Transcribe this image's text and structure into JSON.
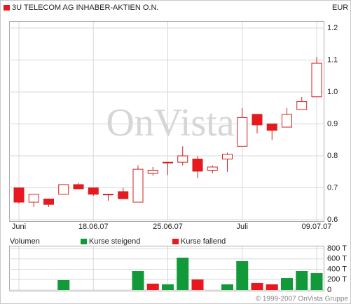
{
  "chart_data": [
    {
      "type": "candlestick",
      "title": "3U TELECOM AG INHABER-AKTIEN O.N.",
      "unit": "EUR",
      "watermark": "OnVista.",
      "categories": [
        "Juni",
        null,
        null,
        null,
        null,
        "18.06.07",
        null,
        null,
        null,
        null,
        "25.06.07",
        null,
        null,
        null,
        null,
        "Juli",
        null,
        null,
        null,
        null,
        "09.07.07"
      ],
      "open": [
        0.7,
        0.655,
        0.665,
        0.68,
        0.71,
        0.7,
        0.68,
        0.688,
        0.655,
        0.745,
        0.778,
        0.78,
        0.79,
        0.755,
        0.79,
        0.83,
        0.93,
        0.9,
        0.89,
        0.945,
        0.985
      ],
      "high": [
        0.7,
        0.68,
        0.665,
        0.71,
        0.715,
        0.7,
        0.68,
        0.7,
        0.77,
        0.765,
        0.78,
        0.83,
        0.8,
        0.77,
        0.81,
        0.95,
        0.93,
        0.9,
        0.95,
        0.985,
        1.11
      ],
      "low": [
        0.65,
        0.64,
        0.64,
        0.68,
        0.695,
        0.675,
        0.66,
        0.666,
        0.655,
        0.738,
        0.74,
        0.77,
        0.73,
        0.745,
        0.75,
        0.83,
        0.87,
        0.85,
        0.89,
        0.945,
        0.985
      ],
      "close": [
        0.655,
        0.68,
        0.648,
        0.71,
        0.697,
        0.68,
        0.678,
        0.666,
        0.758,
        0.755,
        0.78,
        0.8,
        0.752,
        0.765,
        0.805,
        0.92,
        0.897,
        0.88,
        0.93,
        0.97,
        1.09
      ],
      "up_color": "#ffffff",
      "down_color": "#e8191e",
      "outline_color": "#d42020",
      "ylim": [
        0.6,
        1.2
      ],
      "yticks": [
        0.6,
        0.7,
        0.8,
        0.9,
        {
          "value": 1,
          "label": "1.0"
        },
        1.1,
        1.2
      ],
      "grid": true
    },
    {
      "type": "bar",
      "title": "Volumen",
      "series": [
        {
          "name": "Kurse steigend",
          "color": "#129a3a",
          "values": [
            null,
            null,
            null,
            190,
            null,
            null,
            null,
            null,
            366,
            null,
            108,
            624,
            null,
            null,
            108,
            556,
            null,
            null,
            230,
            366,
            325
          ]
        },
        {
          "name": "Kurse fallend",
          "color": "#e8191e",
          "values": [
            null,
            null,
            null,
            null,
            null,
            null,
            null,
            null,
            null,
            122,
            null,
            null,
            203,
            null,
            null,
            null,
            136,
            108,
            null,
            null,
            null
          ]
        }
      ],
      "ylim": [
        0,
        800
      ],
      "yticks": [
        0,
        {
          "value": 200,
          "label": "200 T"
        },
        {
          "value": 400,
          "label": "400 T"
        },
        {
          "value": 600,
          "label": "600 T"
        },
        {
          "value": 800,
          "label": "800 T"
        }
      ],
      "grid": true
    }
  ],
  "footer": "© 1999-2007 OnVista Gruppe"
}
